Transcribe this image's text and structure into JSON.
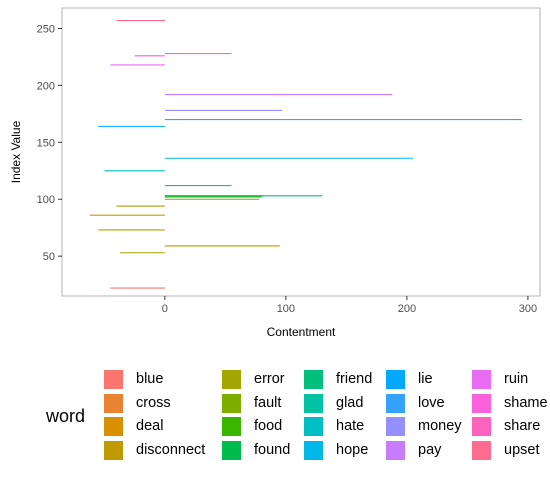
{
  "chart_data": {
    "type": "bar",
    "orientation": "horizontal-segments",
    "xlabel": "Contentment",
    "ylabel": "Index Value",
    "xlim": [
      -85,
      310
    ],
    "ylim": [
      15,
      268
    ],
    "x_ticks": [
      0,
      100,
      200,
      300
    ],
    "y_ticks": [
      50,
      100,
      150,
      200,
      250
    ],
    "grid": false,
    "legend_title": "word",
    "legend_placement": "bottom",
    "series": [
      {
        "name": "blue",
        "color": "#F8766D",
        "values": [
          {
            "y": 22,
            "x": -45
          }
        ]
      },
      {
        "name": "cross",
        "color": "#EA8331",
        "values": []
      },
      {
        "name": "deal",
        "color": "#D89000",
        "values": []
      },
      {
        "name": "disconnect",
        "color": "#C09B00",
        "values": [
          {
            "y": 59,
            "x": 95
          },
          {
            "y": 73,
            "x": -55
          },
          {
            "y": 86,
            "x": -62
          }
        ]
      },
      {
        "name": "error",
        "color": "#A3A500",
        "values": [
          {
            "y": 53,
            "x": -37
          },
          {
            "y": 94,
            "x": -40
          }
        ]
      },
      {
        "name": "fault",
        "color": "#7CAE00",
        "values": [
          {
            "y": 100,
            "x": 78
          }
        ]
      },
      {
        "name": "food",
        "color": "#39B600",
        "values": [
          {
            "y": 102,
            "x": 80
          }
        ]
      },
      {
        "name": "found",
        "color": "#00BB4E",
        "values": [
          {
            "y": 103,
            "x": 82
          }
        ]
      },
      {
        "name": "friend",
        "color": "#00BF7D",
        "values": [
          {
            "y": 103,
            "x": 130
          }
        ]
      },
      {
        "name": "glad",
        "color": "#00C1A3",
        "values": [
          {
            "y": 112,
            "x": 55
          }
        ]
      },
      {
        "name": "hate",
        "color": "#00BFC4",
        "values": [
          {
            "y": 125,
            "x": -50
          }
        ]
      },
      {
        "name": "hope",
        "color": "#00B8E7",
        "values": [
          {
            "y": 136,
            "x": 205
          }
        ]
      },
      {
        "name": "lie",
        "color": "#00A9FF",
        "values": [
          {
            "y": 164,
            "x": -55
          }
        ]
      },
      {
        "name": "love",
        "color": "#35A2FF",
        "values": [
          {
            "y": 170,
            "x": 295
          }
        ]
      },
      {
        "name": "money",
        "color": "#9590FF",
        "values": [
          {
            "y": 178,
            "x": 97
          }
        ]
      },
      {
        "name": "pay",
        "color": "#C77CFF",
        "values": [
          {
            "y": 192,
            "x": 188
          }
        ]
      },
      {
        "name": "ruin",
        "color": "#E76BF3",
        "values": [
          {
            "y": 218,
            "x": -45
          },
          {
            "y": 228,
            "x": 55
          }
        ]
      },
      {
        "name": "shame",
        "color": "#FA62DB",
        "values": [
          {
            "y": 226,
            "x": -25
          }
        ]
      },
      {
        "name": "share",
        "color": "#FF62BC",
        "values": []
      },
      {
        "name": "upset",
        "color": "#FF6C91",
        "values": [
          {
            "y": 257,
            "x": -40
          }
        ]
      }
    ]
  }
}
